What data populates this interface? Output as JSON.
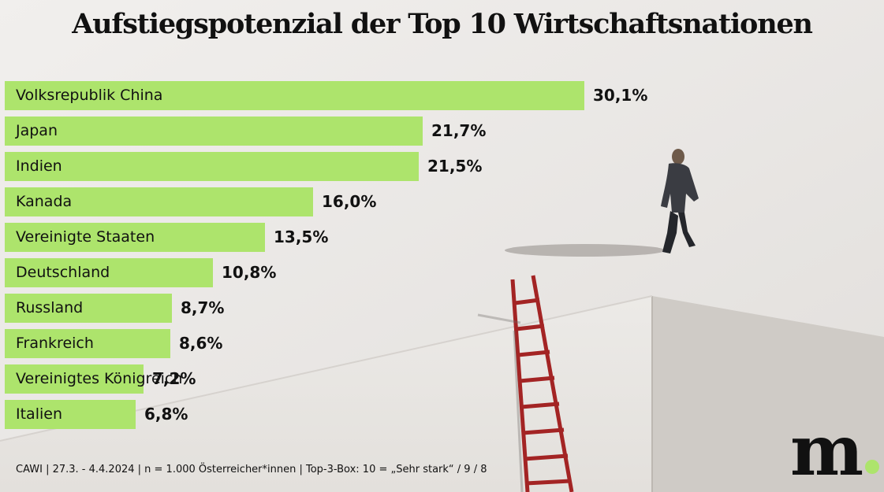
{
  "title": "Aufstiegspotenzial der Top 10 Wirtschaftsnationen",
  "footnote": "CAWI | 27.3. - 4.4.2024 | n = 1.000 Österreicher*innen | Top-3-Box: 10 = „Sehr stark“ / 9 / 8",
  "logo": "m",
  "colors": {
    "bar": "#ade46c",
    "text": "#111111",
    "background": "#ebe9e6",
    "ladder": "#a32424",
    "block": "#cfcbc6"
  },
  "chart_data": {
    "type": "bar",
    "orientation": "horizontal",
    "title": "Aufstiegspotenzial der Top 10 Wirtschaftsnationen",
    "unit": "%",
    "categories": [
      "Volksrepublik China",
      "Japan",
      "Indien",
      "Kanada",
      "Vereinigte Staaten",
      "Deutschland",
      "Russland",
      "Frankreich",
      "Vereinigtes Königreich",
      "Italien"
    ],
    "values": [
      30.1,
      21.7,
      21.5,
      16.0,
      13.5,
      10.8,
      8.7,
      8.6,
      7.2,
      6.8
    ],
    "value_labels": [
      "30,1%",
      "21,7%",
      "21,5%",
      "16,0%",
      "13,5%",
      "10,8%",
      "8,7%",
      "8,6%",
      "7,2%",
      "6,8%"
    ],
    "xlim": [
      0,
      30.1
    ],
    "xlabel": "",
    "ylabel": "",
    "grid": false,
    "legend": "none"
  }
}
